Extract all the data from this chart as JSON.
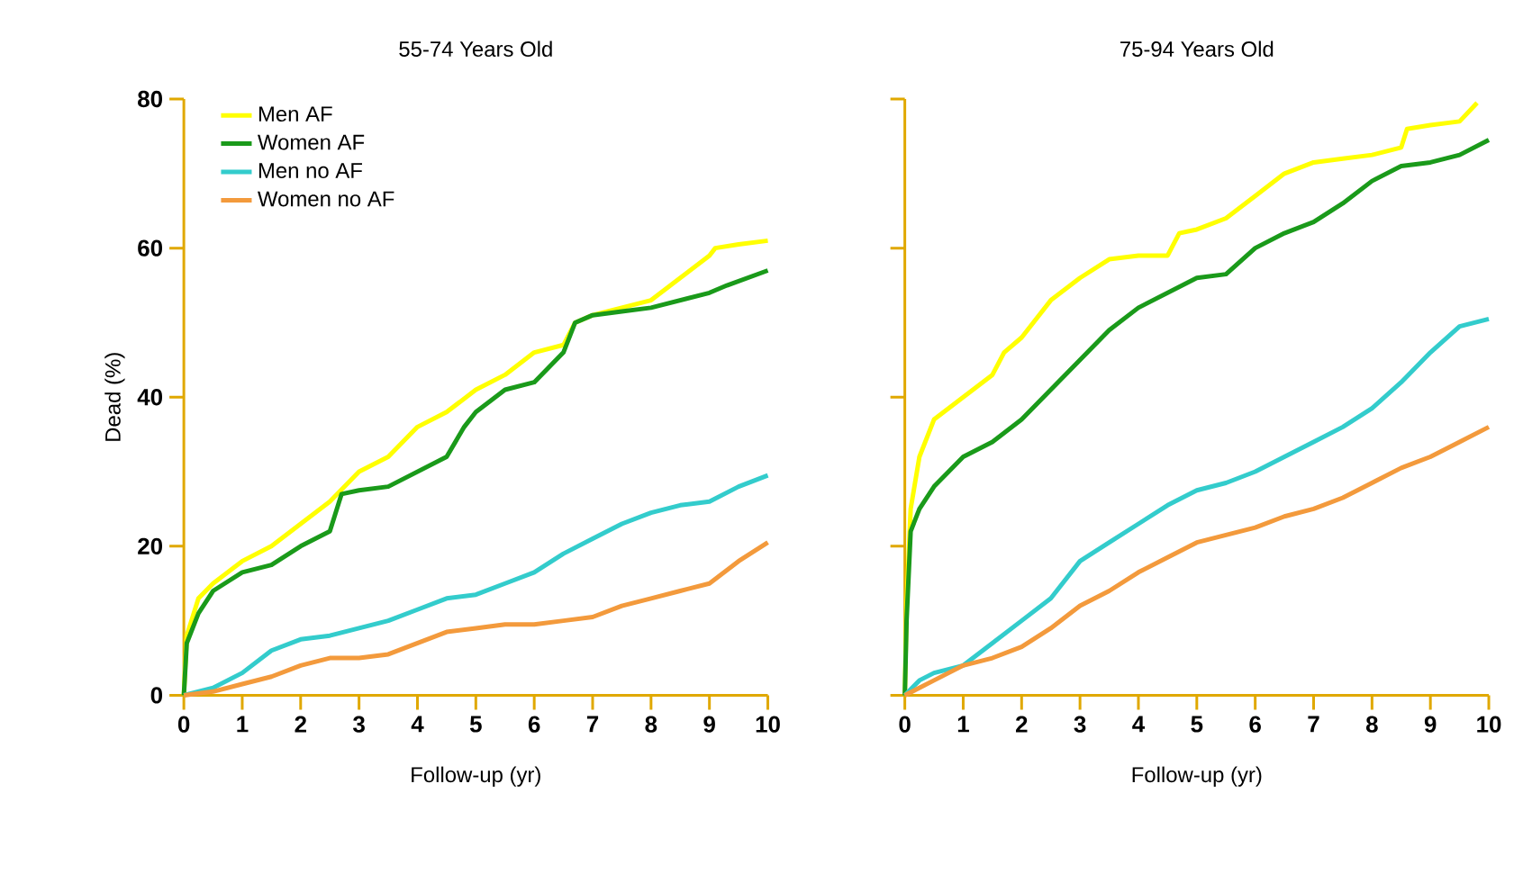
{
  "chart_data": [
    {
      "type": "line",
      "title": "55-74 Years Old",
      "xlabel": "Follow-up (yr)",
      "ylabel": "Dead (%)",
      "xlim": [
        0,
        10
      ],
      "ylim": [
        0,
        80
      ],
      "xticks": [
        0,
        1,
        2,
        3,
        4,
        5,
        6,
        7,
        8,
        9,
        10
      ],
      "yticks": [
        0,
        20,
        40,
        60,
        80
      ],
      "legend": "top left",
      "series": [
        {
          "name": "Men AF",
          "color": "#ffff00",
          "x": [
            0,
            0.05,
            0.25,
            0.5,
            1,
            1.5,
            2,
            2.5,
            3,
            3.5,
            4,
            4.5,
            5,
            5.5,
            6,
            6.5,
            6.7,
            7,
            7.5,
            8,
            8.5,
            9,
            9.1,
            9.5,
            10
          ],
          "values": [
            0,
            8,
            13,
            15,
            18,
            20,
            23,
            26,
            30,
            32,
            36,
            38,
            41,
            43,
            46,
            47,
            50,
            51,
            52,
            53,
            56,
            59,
            60,
            60.5,
            61
          ]
        },
        {
          "name": "Women AF",
          "color": "#1a9a1a",
          "x": [
            0,
            0.05,
            0.25,
            0.5,
            1,
            1.5,
            2,
            2.5,
            2.7,
            3,
            3.5,
            4,
            4.5,
            4.8,
            5,
            5.5,
            6,
            6.5,
            6.7,
            7,
            7.5,
            8,
            8.5,
            9,
            9.3,
            10
          ],
          "values": [
            0,
            7,
            11,
            14,
            16.5,
            17.5,
            20,
            22,
            27,
            27.5,
            28,
            30,
            32,
            36,
            38,
            41,
            42,
            46,
            50,
            51,
            51.5,
            52,
            53,
            54,
            55,
            57
          ]
        },
        {
          "name": "Men no AF",
          "color": "#33cccc",
          "x": [
            0,
            0.5,
            1,
            1.5,
            2,
            2.5,
            3,
            3.5,
            4,
            4.5,
            5,
            5.5,
            6,
            6.5,
            7,
            7.5,
            8,
            8.5,
            9,
            9.5,
            10
          ],
          "values": [
            0,
            1,
            3,
            6,
            7.5,
            8,
            9,
            10,
            11.5,
            13,
            13.5,
            15,
            16.5,
            19,
            21,
            23,
            24.5,
            25.5,
            26,
            28,
            29.5
          ]
        },
        {
          "name": "Women no AF",
          "color": "#f39a3c",
          "x": [
            0,
            0.5,
            1,
            1.5,
            2,
            2.5,
            3,
            3.5,
            4,
            4.5,
            5,
            5.5,
            6,
            6.5,
            7,
            7.5,
            8,
            8.5,
            9,
            9.5,
            10
          ],
          "values": [
            0,
            0.5,
            1.5,
            2.5,
            4,
            5,
            5,
            5.5,
            7,
            8.5,
            9,
            9.5,
            9.5,
            10,
            10.5,
            12,
            13,
            14,
            15,
            18,
            20.5
          ]
        }
      ]
    },
    {
      "type": "line",
      "title": "75-94 Years Old",
      "xlabel": "Follow-up (yr)",
      "xlim": [
        0,
        10
      ],
      "ylim": [
        0,
        80
      ],
      "xticks": [
        0,
        1,
        2,
        3,
        4,
        5,
        6,
        7,
        8,
        9,
        10
      ],
      "yticks": [
        0,
        20,
        40,
        60,
        80
      ],
      "tick_labels": "x",
      "series": [
        {
          "color": "#ffff00",
          "x": [
            0,
            0.03,
            0.1,
            0.25,
            0.5,
            1,
            1.5,
            1.7,
            2,
            2.5,
            3,
            3.5,
            4,
            4.5,
            4.7,
            5,
            5.5,
            6,
            6.5,
            7,
            7.5,
            8,
            8.5,
            8.6,
            9,
            9.5,
            9.8
          ],
          "values": [
            0,
            12,
            25,
            32,
            37,
            40,
            43,
            46,
            48,
            53,
            56,
            58.5,
            59,
            59,
            62,
            62.5,
            64,
            67,
            70,
            71.5,
            72,
            72.5,
            73.5,
            76,
            76.5,
            77,
            79.5
          ]
        },
        {
          "color": "#1a9a1a",
          "x": [
            0,
            0.03,
            0.1,
            0.25,
            0.5,
            1,
            1.5,
            2,
            2.5,
            3,
            3.5,
            4,
            4.5,
            5,
            5.5,
            6,
            6.5,
            7,
            7.5,
            8,
            8.5,
            9,
            9.5,
            10
          ],
          "values": [
            0,
            10,
            22,
            25,
            28,
            32,
            34,
            37,
            41,
            45,
            49,
            52,
            54,
            56,
            56.5,
            60,
            62,
            63.5,
            66,
            69,
            71,
            71.5,
            72.5,
            74.5
          ]
        },
        {
          "color": "#33cccc",
          "x": [
            0,
            0.25,
            0.5,
            1,
            1.5,
            2,
            2.5,
            3,
            3.5,
            4,
            4.5,
            5,
            5.5,
            6,
            6.5,
            7,
            7.5,
            8,
            8.5,
            9,
            9.5,
            10
          ],
          "values": [
            0,
            2,
            3,
            4,
            7,
            10,
            13,
            18,
            20.5,
            23,
            25.5,
            27.5,
            28.5,
            30,
            32,
            34,
            36,
            38.5,
            42,
            46,
            49.5,
            50.5
          ]
        },
        {
          "color": "#f39a3c",
          "x": [
            0,
            0.5,
            1,
            1.5,
            2,
            2.5,
            3,
            3.5,
            4,
            4.5,
            5,
            5.5,
            6,
            6.5,
            7,
            7.5,
            8,
            8.5,
            9,
            9.5,
            10
          ],
          "values": [
            0,
            2,
            4,
            5,
            6.5,
            9,
            12,
            14,
            16.5,
            18.5,
            20.5,
            21.5,
            22.5,
            24,
            25,
            26.5,
            28.5,
            30.5,
            32,
            34,
            36
          ]
        }
      ]
    }
  ]
}
